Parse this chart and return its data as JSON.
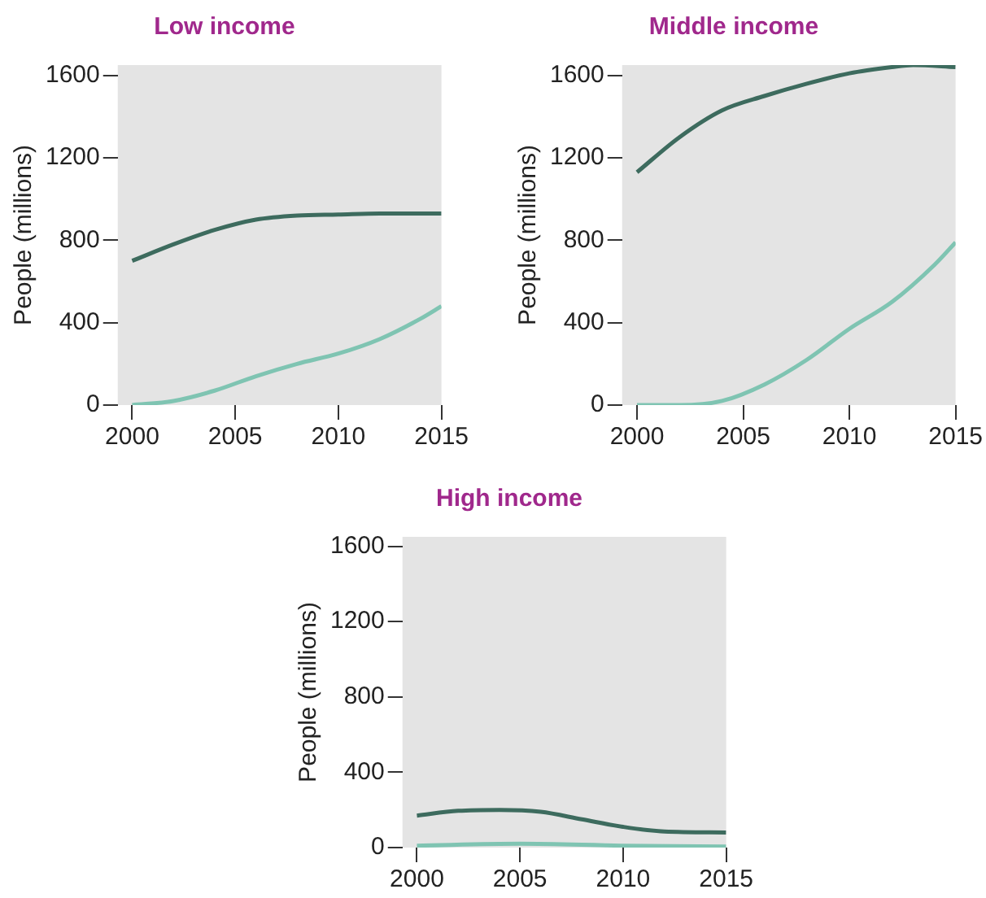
{
  "chart_data": [
    {
      "type": "line",
      "title": "Low income",
      "ylabel": "People (millions)",
      "xlim": [
        1999.3,
        2015
      ],
      "xticks": [
        2000,
        2005,
        2010,
        2015
      ],
      "ylim": [
        0,
        1650
      ],
      "yticks": [
        0,
        400,
        800,
        1200,
        1600
      ],
      "series": [
        {
          "color": "#3d6b5e",
          "x": [
            2000,
            2002,
            2004,
            2006,
            2008,
            2010,
            2012,
            2015
          ],
          "values": [
            700,
            780,
            850,
            900,
            920,
            925,
            930,
            930
          ]
        },
        {
          "color": "#7fc4b2",
          "x": [
            2000,
            2002,
            2004,
            2006,
            2008,
            2010,
            2012,
            2014,
            2015
          ],
          "values": [
            0,
            20,
            70,
            140,
            200,
            250,
            320,
            420,
            480
          ]
        }
      ]
    },
    {
      "type": "line",
      "title": "Middle income",
      "ylabel": "People (millions)",
      "xlim": [
        1999.3,
        2015
      ],
      "xticks": [
        2000,
        2005,
        2010,
        2015
      ],
      "ylim": [
        0,
        1650
      ],
      "yticks": [
        0,
        400,
        800,
        1200,
        1600
      ],
      "series": [
        {
          "color": "#3d6b5e",
          "x": [
            2000,
            2002,
            2004,
            2006,
            2008,
            2010,
            2012,
            2013,
            2015
          ],
          "values": [
            1130,
            1300,
            1430,
            1500,
            1560,
            1610,
            1640,
            1650,
            1640
          ]
        },
        {
          "color": "#7fc4b2",
          "x": [
            2000,
            2002,
            2004,
            2006,
            2008,
            2010,
            2012,
            2014,
            2015
          ],
          "values": [
            0,
            0,
            20,
            100,
            220,
            370,
            500,
            680,
            790
          ]
        }
      ]
    },
    {
      "type": "line",
      "title": "High income",
      "ylabel": "People (millions)",
      "xlim": [
        1999.3,
        2015
      ],
      "xticks": [
        2000,
        2005,
        2010,
        2015
      ],
      "ylim": [
        0,
        1650
      ],
      "yticks": [
        0,
        400,
        800,
        1200,
        1600
      ],
      "series": [
        {
          "color": "#3d6b5e",
          "x": [
            2000,
            2002,
            2004,
            2006,
            2008,
            2010,
            2012,
            2015
          ],
          "values": [
            170,
            195,
            200,
            190,
            150,
            110,
            85,
            80
          ]
        },
        {
          "color": "#7fc4b2",
          "x": [
            2000,
            2005,
            2010,
            2015
          ],
          "values": [
            10,
            20,
            10,
            5
          ]
        }
      ]
    }
  ]
}
